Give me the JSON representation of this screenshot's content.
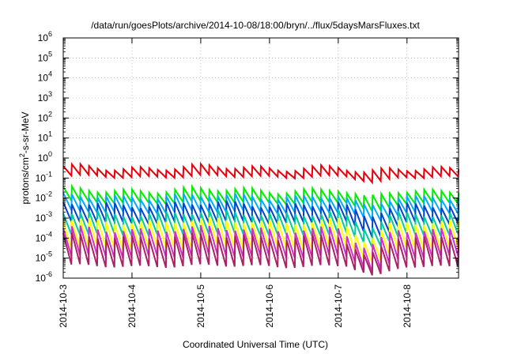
{
  "chart_data": {
    "type": "line",
    "title": "/data/run/goesPlots/archive/2014-10-08/18:00/bryn/../flux/5daysMarsFluxes.txt",
    "xlabel": "Coordinated Universal Time (UTC)",
    "ylabel_parts": [
      "protons/cm",
      "2",
      "-s-sr-MeV"
    ],
    "x_ticks": [
      "2014-10-3",
      "2014-10-4",
      "2014-10-5",
      "2014-10-6",
      "2014-10-7",
      "2014-10-8"
    ],
    "xlim": [
      "2014-10-03T00:00",
      "2014-10-08T18:00"
    ],
    "y_scale": "log",
    "ylim": [
      1e-06,
      1000000.0
    ],
    "y_tick_exponents": [
      -6,
      -5,
      -4,
      -3,
      -2,
      -1,
      0,
      1,
      2,
      3,
      4,
      5,
      6
    ],
    "y_tick_base": "10",
    "grid": true,
    "sawtooth_period_hours": 3,
    "dip_time": "2014-10-07T10:00",
    "series": [
      {
        "color": "#e8000b",
        "peak": 0.33,
        "floor": 0.12,
        "dip_floor": 0.05
      },
      {
        "color": "#00ee00",
        "peak": 0.025,
        "floor": 0.006,
        "dip_floor": 0.0015
      },
      {
        "color": "#00aaff",
        "peak": 0.012,
        "floor": 0.002,
        "dip_floor": 0.0005
      },
      {
        "color": "#0044cc",
        "peak": 0.005,
        "floor": 0.0006,
        "dip_floor": 8e-05
      },
      {
        "color": "#00cc99",
        "peak": 0.0018,
        "floor": 0.00015,
        "dip_floor": 3e-05
      },
      {
        "color": "#ffff00",
        "peak": 0.0007,
        "floor": 3e-05,
        "dip_floor": 5e-06
      },
      {
        "color": "#cc33cc",
        "peak": 0.00028,
        "floor": 1.2e-05,
        "dip_floor": 1.5e-06
      },
      {
        "color": "#aa2266",
        "peak": 0.00012,
        "floor": 4e-06,
        "dip_floor": 1e-06
      }
    ]
  }
}
